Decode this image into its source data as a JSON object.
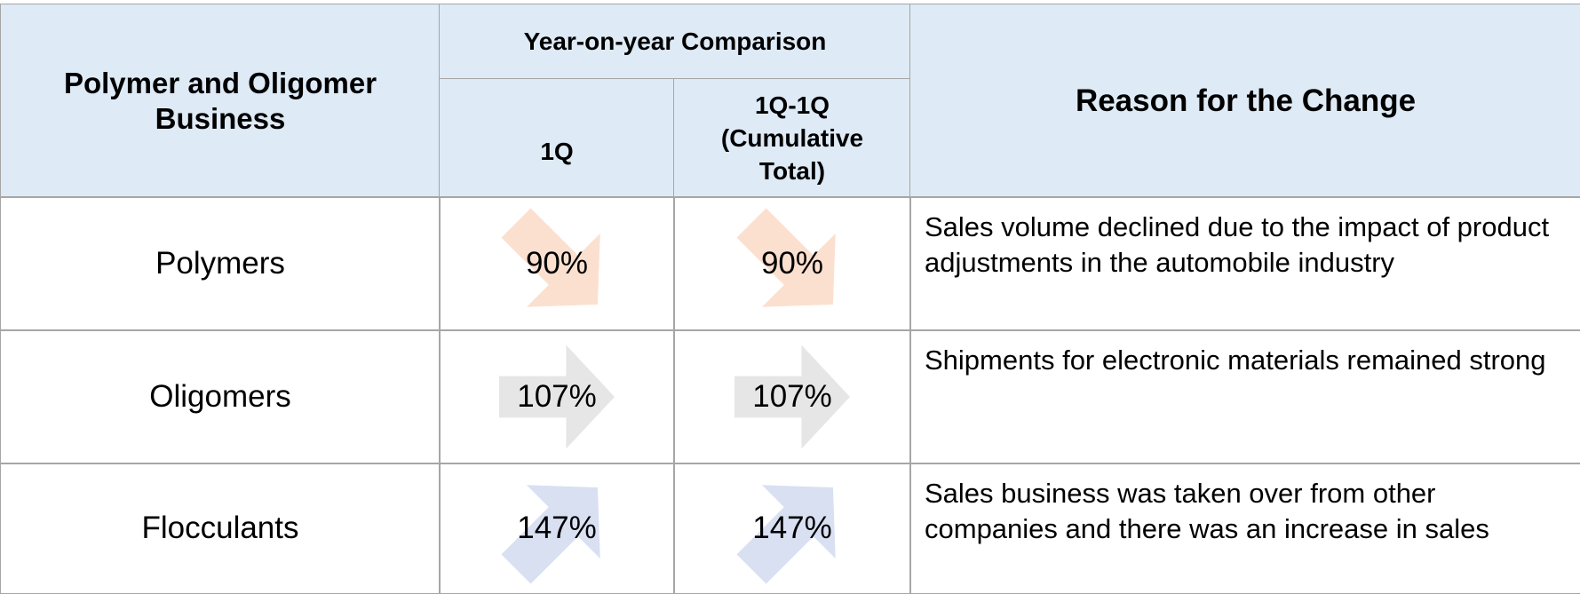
{
  "table": {
    "header": {
      "business": "Polymer and Oligomer Business",
      "comparison": "Year-on-year Comparison",
      "columns": [
        "1Q",
        "1Q-1Q (Cumulative Total)"
      ],
      "reason": "Reason for the Change"
    },
    "rows": [
      [
        "Polymers",
        "90%",
        "90%",
        "Sales volume declined due to the impact of product adjustments in the automobile industry"
      ],
      [
        "Oligomers",
        "107%",
        "107%",
        "Shipments for electronic materials remained strong"
      ],
      [
        "Flocculants",
        "147%",
        "147%",
        "Sales business was taken over from other companies and there was an increase in sales"
      ]
    ]
  }
}
